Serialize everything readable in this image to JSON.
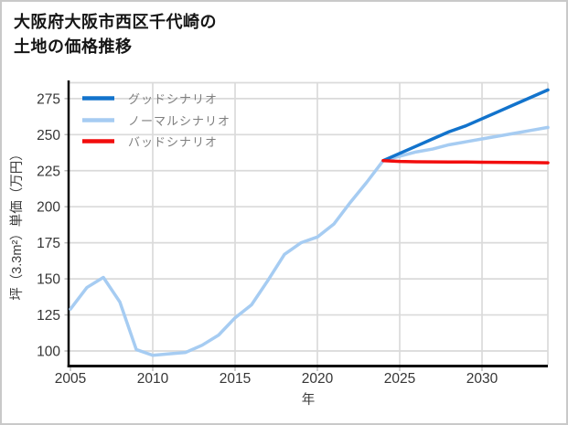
{
  "title": {
    "line1": "大阪府大阪市西区千代崎の",
    "line2": "土地の価格推移"
  },
  "chart_data": {
    "type": "line",
    "title": "大阪府大阪市西区千代崎の土地の価格推移",
    "xlabel": "年",
    "ylabel": "坪（3.3m²）単価（万円）",
    "x_ticks": [
      2005,
      2010,
      2015,
      2020,
      2025,
      2030
    ],
    "y_ticks": [
      100,
      125,
      150,
      175,
      200,
      225,
      250,
      275
    ],
    "xlim": [
      2005,
      2034
    ],
    "ylim": [
      90,
      286
    ],
    "grid": true,
    "legend_position": "top-left",
    "series": [
      {
        "name": "グッドシナリオ",
        "color": "#1273cc",
        "x": [
          2024,
          2025,
          2026,
          2027,
          2028,
          2029,
          2030,
          2031,
          2032,
          2033,
          2034
        ],
        "values": [
          232,
          237,
          242,
          247,
          252,
          256,
          261,
          266,
          271,
          276,
          281
        ]
      },
      {
        "name": "ノーマルシナリオ",
        "color": "#a6ccf2",
        "x": [
          2005,
          2006,
          2007,
          2008,
          2009,
          2010,
          2011,
          2012,
          2013,
          2014,
          2015,
          2016,
          2017,
          2018,
          2019,
          2020,
          2021,
          2022,
          2023,
          2024,
          2025,
          2026,
          2027,
          2028,
          2029,
          2030,
          2031,
          2032,
          2033,
          2034
        ],
        "values": [
          129,
          144,
          151,
          134,
          101,
          97,
          98,
          99,
          104,
          111,
          123,
          132,
          149,
          167,
          175,
          179,
          188,
          203,
          217,
          232,
          235,
          238,
          240,
          243,
          245,
          247,
          249,
          251,
          253,
          255
        ]
      },
      {
        "name": "バッドシナリオ",
        "color": "#f20d0d",
        "x": [
          2024,
          2025,
          2026,
          2027,
          2028,
          2029,
          2030,
          2031,
          2032,
          2033,
          2034
        ],
        "values": [
          232,
          231.4,
          231.2,
          231.1,
          231,
          231,
          230.9,
          230.8,
          230.7,
          230.6,
          230.5
        ]
      }
    ]
  }
}
